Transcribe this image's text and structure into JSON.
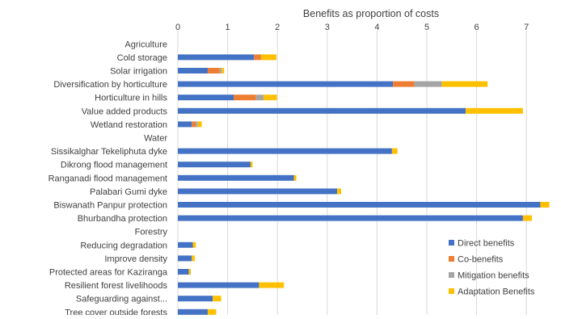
{
  "chart_data": {
    "type": "bar",
    "orientation": "horizontal",
    "stacked": true,
    "title": "Benefits as proportion of costs",
    "xlim": [
      0,
      7.5
    ],
    "x_ticks": [
      0,
      1,
      2,
      3,
      4,
      5,
      6,
      7
    ],
    "grid": true,
    "legend_position": "bottom-right",
    "categories": [
      "Agriculture",
      "Cold storage",
      "Solar irrigation",
      "Diversification by horticulture",
      "Horticulture in hills",
      "Value added products",
      "Wetland restoration",
      "Water",
      "Sissikalghar Tekeliphuta dyke",
      "Dikrong flood management",
      "Ranganadi flood management",
      "Palabari Gumi dyke",
      "Biswanath Panpur protection",
      "Bhurbandha protection",
      "Forestry",
      "Reducing degradation",
      "Improve density",
      "Protected areas for Kaziranga",
      "Resilient forest livelihoods",
      "Safeguarding against...",
      "Tree cover outside forests"
    ],
    "series": [
      {
        "name": "Direct benefits",
        "color": "#4472C4",
        "values": [
          0,
          1.53,
          0.6,
          4.32,
          1.12,
          5.78,
          0.28,
          0,
          4.3,
          1.46,
          2.33,
          3.2,
          7.28,
          6.93,
          0,
          0.3,
          0.28,
          0.22,
          1.63,
          0.7,
          0.6
        ]
      },
      {
        "name": "Co-benefits",
        "color": "#ED7D31",
        "values": [
          0,
          0.14,
          0.24,
          0.43,
          0.45,
          0,
          0.08,
          0,
          0,
          0,
          0,
          0,
          0,
          0,
          0,
          0,
          0,
          0,
          0,
          0,
          0
        ]
      },
      {
        "name": "Mitigation benefits",
        "color": "#A5A5A5",
        "values": [
          0,
          0,
          0.04,
          0.55,
          0.15,
          0,
          0.04,
          0,
          0,
          0,
          0,
          0,
          0,
          0,
          0,
          0,
          0,
          0,
          0,
          0,
          0
        ]
      },
      {
        "name": "Adaptation Benefits",
        "color": "#FFC000",
        "values": [
          0,
          0.31,
          0.05,
          0.92,
          0.27,
          1.15,
          0.08,
          0,
          0.11,
          0.04,
          0.05,
          0.08,
          0.18,
          0.18,
          0,
          0.06,
          0.06,
          0.04,
          0.5,
          0.17,
          0.17
        ]
      }
    ]
  }
}
